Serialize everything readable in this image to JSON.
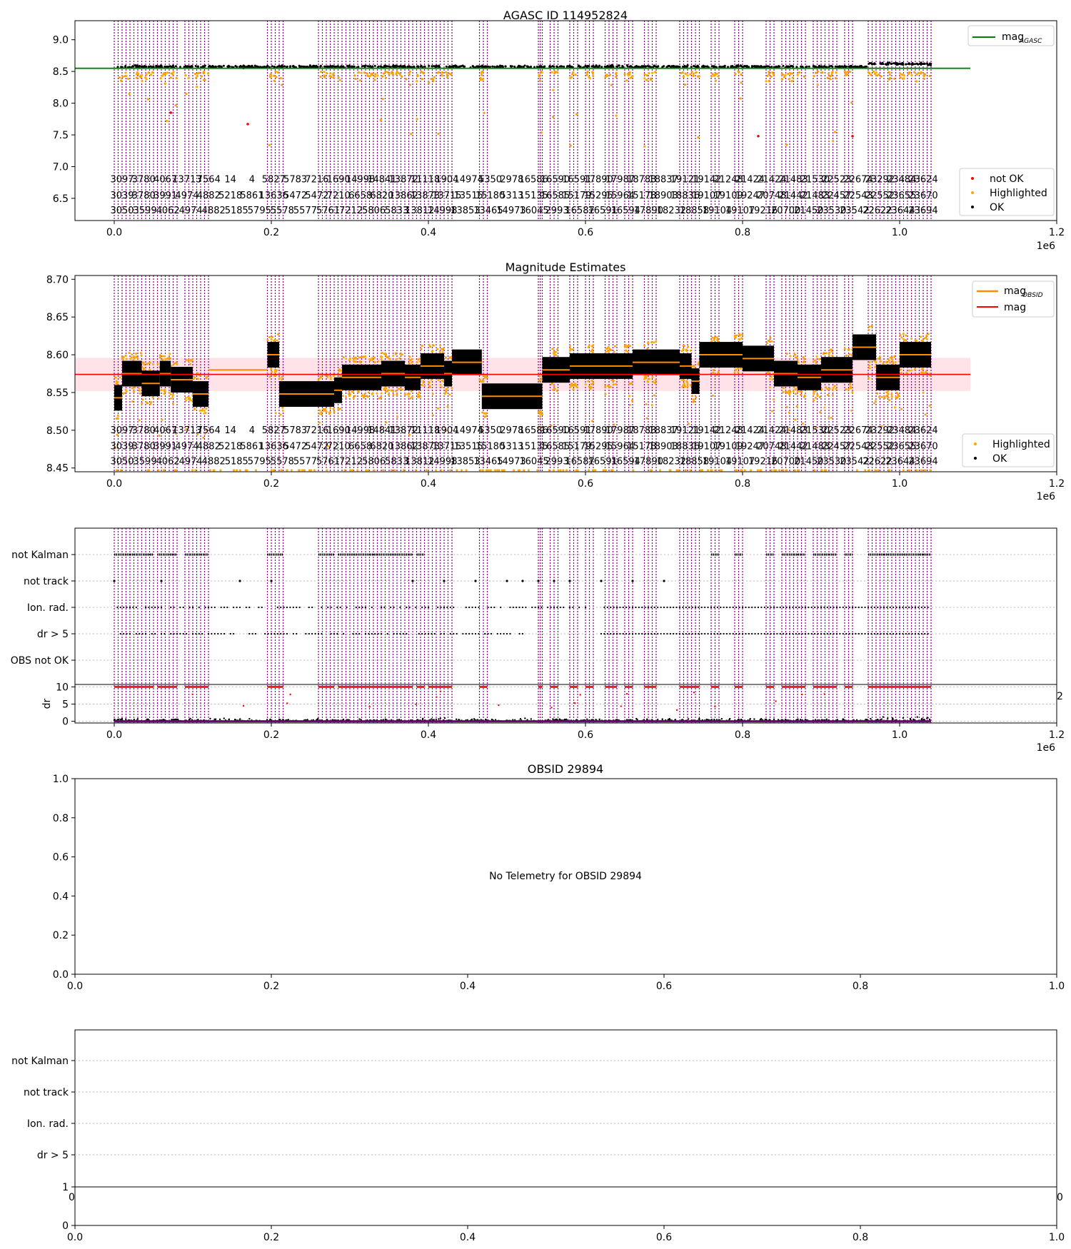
{
  "figure": {
    "x_exponent_label": "1e6",
    "colors": {
      "ok": "#000000",
      "highlighted": "#ffa500",
      "not_ok": "#ff0000",
      "agasc_line": "#008000",
      "obsid_mag": "#ff8c00",
      "mag_line": "#ff0000",
      "mag_band": "#ffc0cb",
      "obsid_vline": "#800080",
      "dr_flag": "#dd2222"
    }
  },
  "obsid_labels": {
    "row1": [
      "3097",
      "3780",
      "4067",
      "13713",
      "7564",
      "14",
      "4",
      "5827",
      "5783",
      "7216",
      "1690",
      "14998",
      "14841",
      "13872",
      "11118",
      "1904",
      "14974",
      "5350",
      "2978",
      "16586",
      "16590",
      "16591",
      "17890",
      "17987",
      "18783",
      "18837",
      "19121",
      "19142",
      "21248",
      "21424",
      "21424",
      "21483",
      "21530",
      "22523",
      "22674",
      "23292",
      "23484",
      "23624"
    ],
    "row2": [
      "3039",
      "3780",
      "3991",
      "4974",
      "4882",
      "5218",
      "5861",
      "13636",
      "5472",
      "5472",
      "7210",
      "6658",
      "6820",
      "13862",
      "13873",
      "13715",
      "13515",
      "15180",
      "5313",
      "15135",
      "16585",
      "15179",
      "15295",
      "15964",
      "15178",
      "18903",
      "18836",
      "19107",
      "19109",
      "19247",
      "20748",
      "21442",
      "21483",
      "22457",
      "22543",
      "22552",
      "23655",
      "23670"
    ],
    "row3": [
      "3050",
      "3599",
      "4062",
      "4974",
      "4882",
      "5185",
      "5795",
      "5578",
      "5577",
      "5761",
      "7212",
      "5806",
      "5833",
      "13812",
      "14998",
      "13853",
      "13465",
      "14973",
      "16045",
      "2993",
      "16587",
      "16591",
      "16594",
      "17890",
      "18232",
      "18858",
      "19104",
      "19107",
      "19216",
      "20700",
      "21450",
      "23530",
      "23542",
      "22622",
      "23644",
      "23694"
    ]
  },
  "panels": {
    "agasc": {
      "title": "AGASC ID 114952824",
      "legend_top": [
        "mag_AGASC"
      ],
      "legend_bottom": [
        "not OK",
        "Highlighted",
        "OK"
      ],
      "yticks": [
        "6.5",
        "7.0",
        "7.5",
        "8.0",
        "8.5",
        "9.0"
      ],
      "xticks": [
        "0.0",
        "0.2",
        "0.4",
        "0.6",
        "0.8",
        "1.0",
        "1.2"
      ]
    },
    "estimates": {
      "title": "Magnitude Estimates",
      "legend_top": [
        "mag_OBSID",
        "mag"
      ],
      "legend_bottom": [
        "Highlighted",
        "OK"
      ],
      "yticks": [
        "8.45",
        "8.50",
        "8.55",
        "8.60",
        "8.65",
        "8.70"
      ],
      "xticks": [
        "0.0",
        "0.2",
        "0.4",
        "0.6",
        "0.8",
        "1.0",
        "1.2"
      ]
    },
    "flags": {
      "flag_labels": [
        "not Kalman",
        "not track",
        "Ion. rad.",
        "dr > 5",
        "OBS not OK"
      ],
      "dr_label": "dr",
      "dr_yticks": [
        "0",
        "5",
        "10"
      ],
      "xticks": [
        "0.0",
        "0.2",
        "0.4",
        "0.6",
        "0.8",
        "1.0",
        "1.2"
      ],
      "clipped_right_tick": "2"
    },
    "obsid": {
      "title": "OBSID 29894",
      "message": "No Telemetry for OBSID 29894",
      "yticks": [
        "0.0",
        "0.2",
        "0.4",
        "0.6",
        "0.8",
        "1.0"
      ],
      "xticks": [
        "0.0",
        "0.2",
        "0.4",
        "0.6",
        "0.8",
        "1.0"
      ]
    },
    "obsid_flags": {
      "flag_labels": [
        "not Kalman",
        "not track",
        "Ion. rad.",
        "dr > 5"
      ],
      "upper_ytick": "1",
      "clipped_left_tick": "0",
      "clipped_right_tick": "0",
      "yticks": [
        "0"
      ],
      "xticks": [
        "0.0",
        "0.2",
        "0.4",
        "0.6",
        "0.8",
        "1.0"
      ]
    }
  },
  "chart_data": [
    {
      "type": "scatter",
      "title": "AGASC ID 114952824",
      "xlim": [
        -50000,
        1200000
      ],
      "ylim": [
        6.15,
        9.3
      ],
      "series": [
        {
          "name": "mag_AGASC",
          "kind": "line",
          "value": 8.55
        },
        {
          "name": "OK",
          "kind": "scatter",
          "approx_range": [
            8.52,
            8.67
          ]
        },
        {
          "name": "Highlighted",
          "kind": "scatter",
          "approx_range": [
            7.1,
            8.95
          ]
        },
        {
          "name": "not OK",
          "kind": "scatter",
          "points": [
            [
              72000,
              7.85
            ],
            [
              170000,
              7.67
            ],
            [
              820000,
              7.48
            ],
            [
              940000,
              7.48
            ]
          ]
        }
      ],
      "x_extent": [
        0,
        1040000
      ],
      "xtick_values": [
        0,
        200000,
        400000,
        600000,
        800000,
        1000000,
        1200000
      ]
    },
    {
      "type": "scatter",
      "title": "Magnitude Estimates",
      "xlim": [
        -50000,
        1200000
      ],
      "ylim": [
        8.445,
        8.705
      ],
      "series": [
        {
          "name": "mag",
          "kind": "line",
          "value": 8.574,
          "band": [
            8.552,
            8.596
          ]
        },
        {
          "name": "mag_OBSID",
          "kind": "step",
          "segments": [
            [
              0,
              8.543
            ],
            [
              10000,
              8.575
            ],
            [
              35000,
              8.562
            ],
            [
              58000,
              8.575
            ],
            [
              72000,
              8.567
            ],
            [
              100000,
              8.548
            ],
            [
              120000,
              8.58
            ],
            [
              195000,
              8.6
            ],
            [
              210000,
              8.548
            ],
            [
              280000,
              8.553
            ],
            [
              290000,
              8.57
            ],
            [
              340000,
              8.575
            ],
            [
              370000,
              8.57
            ],
            [
              390000,
              8.585
            ],
            [
              420000,
              8.575
            ],
            [
              430000,
              8.59
            ],
            [
              468000,
              8.545
            ],
            [
              545000,
              8.58
            ],
            [
              580000,
              8.585
            ],
            [
              660000,
              8.59
            ],
            [
              720000,
              8.585
            ],
            [
              735000,
              8.565
            ],
            [
              745000,
              8.6
            ],
            [
              800000,
              8.595
            ],
            [
              840000,
              8.575
            ],
            [
              870000,
              8.57
            ],
            [
              900000,
              8.58
            ],
            [
              940000,
              8.61
            ],
            [
              970000,
              8.57
            ],
            [
              1000000,
              8.6
            ],
            [
              1040000,
              8.63
            ]
          ]
        },
        {
          "name": "OK",
          "kind": "scatter"
        },
        {
          "name": "Highlighted",
          "kind": "scatter"
        }
      ],
      "xtick_values": [
        0,
        200000,
        400000,
        600000,
        800000,
        1000000,
        1200000
      ]
    },
    {
      "type": "scatter",
      "title": "",
      "categories": [
        "not Kalman",
        "not track",
        "Ion. rad.",
        "dr > 5",
        "OBS not OK"
      ],
      "dr_ylim": [
        -0.5,
        10.5
      ],
      "xtick_values": [
        0,
        200000,
        400000,
        600000,
        800000,
        1000000,
        1200000
      ]
    },
    {
      "type": "scatter",
      "title": "OBSID 29894",
      "xlim": [
        0,
        1
      ],
      "ylim": [
        0,
        1
      ],
      "series": []
    }
  ]
}
